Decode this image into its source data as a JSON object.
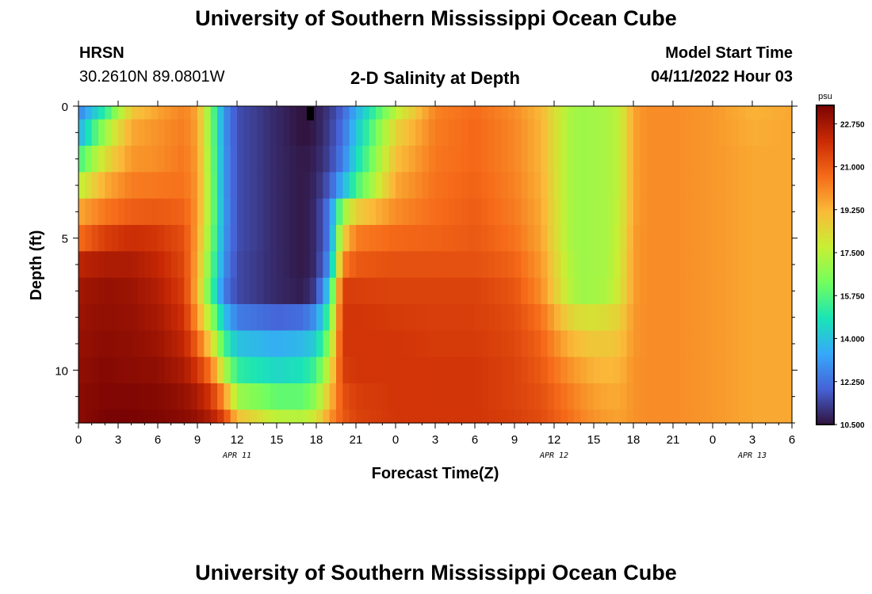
{
  "page": {
    "title_top": "University of Southern Mississippi Ocean Cube",
    "title_bottom": "University of Southern Mississippi Ocean Cube",
    "station": "HRSN",
    "coordinates": "30.2610N  89.0801W",
    "plot_title": "2-D Salinity at Depth",
    "model_start_label": "Model Start Time",
    "model_start_value": "04/11/2022 Hour 03"
  },
  "chart_data": {
    "type": "heatmap",
    "title": "2-D Salinity at Depth",
    "xlabel": "Forecast Time(Z)",
    "ylabel": "Depth (ft)",
    "units": "psu",
    "x_range_hours": [
      0,
      54
    ],
    "y_range_ft": [
      0,
      12
    ],
    "x_tick_labels": [
      "0",
      "3",
      "6",
      "9",
      "12",
      "15",
      "18",
      "21",
      "0",
      "3",
      "6",
      "9",
      "12",
      "15",
      "18",
      "21",
      "0",
      "3",
      "6"
    ],
    "y_tick_labels": [
      "0",
      "5",
      "10"
    ],
    "y_tick_values": [
      0,
      5,
      10
    ],
    "date_labels": [
      {
        "label": "APR 11",
        "hour": 12
      },
      {
        "label": "APR 12",
        "hour": 36
      },
      {
        "label": "APR 13",
        "hour": 51
      }
    ],
    "colorbar": {
      "min": 10.5,
      "max": 23.5,
      "tick_values": [
        22.75,
        21.0,
        19.25,
        17.5,
        15.75,
        14.0,
        12.25,
        10.5
      ],
      "tick_labels": [
        "22.750",
        "21.000",
        "19.250",
        "17.500",
        "15.750",
        "14.000",
        "12.250",
        "10.500"
      ],
      "colors": [
        "#30123b",
        "#4662d7",
        "#36a9f9",
        "#1ae4b6",
        "#72fe5e",
        "#c8ef34",
        "#faba39",
        "#f66b19",
        "#ca2a04",
        "#7a0403"
      ]
    },
    "grid_depths_ft": [
      0,
      1,
      2,
      3,
      4,
      5,
      6,
      7,
      8,
      9,
      10,
      11,
      12
    ],
    "profile_hours": [
      0,
      2,
      4,
      6,
      8,
      9,
      10,
      11,
      12,
      15,
      17,
      18,
      19,
      20,
      21,
      24,
      27,
      30,
      33,
      35,
      37,
      38,
      39,
      40,
      41,
      42,
      43,
      45,
      48,
      51,
      54
    ],
    "salinity_psu": [
      [
        12.6,
        15.2,
        18.8,
        19.6,
        20.2,
        19.5,
        16.5,
        13.0,
        11.6,
        10.9,
        10.5,
        10.7,
        11.2,
        12.0,
        13.5,
        17.5,
        20.2,
        20.6,
        20.0,
        19.2,
        17.3,
        17.0,
        17.1,
        17.2,
        17.6,
        19.6,
        20.0,
        20.0,
        19.8,
        19.3,
        19.5
      ],
      [
        13.5,
        17.0,
        19.5,
        19.9,
        20.3,
        19.6,
        16.6,
        13.0,
        11.6,
        10.9,
        10.5,
        10.7,
        11.3,
        12.2,
        14.0,
        18.5,
        20.3,
        20.7,
        20.1,
        19.3,
        17.3,
        17.0,
        17.1,
        17.2,
        17.6,
        19.6,
        20.0,
        20.0,
        19.8,
        19.4,
        19.5
      ],
      [
        15.5,
        18.2,
        19.8,
        20.0,
        20.4,
        19.7,
        16.7,
        13.1,
        11.6,
        10.9,
        10.6,
        10.8,
        11.4,
        12.5,
        14.5,
        19.0,
        20.4,
        20.7,
        20.1,
        19.3,
        17.3,
        17.0,
        17.1,
        17.2,
        17.6,
        19.6,
        20.0,
        20.0,
        19.8,
        19.5,
        19.5
      ],
      [
        17.5,
        19.4,
        20.3,
        20.4,
        20.5,
        19.8,
        16.8,
        13.1,
        11.6,
        10.9,
        10.6,
        10.9,
        11.8,
        13.6,
        15.5,
        19.5,
        20.5,
        20.8,
        20.2,
        19.4,
        17.3,
        17.0,
        17.1,
        17.2,
        17.6,
        19.6,
        20.0,
        20.0,
        19.8,
        19.5,
        19.5
      ],
      [
        19.5,
        20.4,
        20.9,
        21.0,
        20.8,
        19.8,
        16.8,
        13.2,
        11.6,
        10.9,
        10.6,
        11.0,
        12.5,
        16.8,
        18.6,
        20.0,
        20.6,
        20.9,
        20.3,
        19.5,
        17.3,
        17.0,
        17.1,
        17.2,
        17.7,
        19.6,
        20.0,
        20.0,
        19.8,
        19.5,
        19.5
      ],
      [
        20.6,
        21.6,
        22.0,
        21.8,
        21.2,
        19.6,
        16.6,
        13.1,
        11.6,
        10.9,
        10.6,
        11.0,
        12.5,
        18.5,
        20.3,
        20.7,
        20.8,
        21.0,
        20.5,
        19.6,
        17.3,
        17.0,
        17.1,
        17.2,
        17.8,
        19.7,
        20.0,
        20.0,
        19.8,
        19.5,
        19.5
      ],
      [
        22.3,
        22.6,
        22.6,
        22.2,
        21.4,
        19.4,
        16.2,
        12.9,
        11.5,
        10.9,
        10.6,
        11.0,
        13.0,
        20.2,
        21.0,
        21.2,
        21.2,
        21.2,
        20.8,
        19.8,
        17.5,
        17.0,
        17.1,
        17.2,
        17.9,
        19.7,
        20.0,
        20.0,
        19.8,
        19.5,
        19.5
      ],
      [
        22.8,
        23.0,
        22.9,
        22.5,
        21.6,
        19.2,
        15.8,
        12.5,
        11.5,
        10.9,
        10.7,
        11.3,
        14.5,
        21.6,
        21.6,
        21.5,
        21.5,
        21.5,
        21.1,
        20.0,
        17.6,
        17.0,
        17.1,
        17.3,
        18.0,
        19.7,
        20.0,
        20.0,
        19.8,
        19.5,
        19.5
      ],
      [
        22.9,
        23.1,
        23.0,
        22.7,
        21.9,
        19.8,
        17.0,
        14.0,
        12.5,
        12.0,
        12.2,
        13.0,
        15.8,
        21.8,
        21.8,
        21.7,
        21.6,
        21.6,
        21.3,
        20.5,
        18.6,
        18.2,
        18.1,
        18.3,
        18.6,
        19.8,
        20.0,
        20.0,
        19.8,
        19.5,
        19.5
      ],
      [
        23.0,
        23.2,
        23.1,
        22.9,
        22.2,
        20.8,
        18.6,
        15.6,
        14.0,
        13.5,
        13.8,
        14.3,
        16.8,
        21.8,
        21.8,
        21.8,
        21.7,
        21.7,
        21.4,
        20.8,
        19.4,
        19.0,
        18.8,
        18.8,
        19.0,
        19.8,
        20.0,
        20.0,
        19.8,
        19.5,
        19.5
      ],
      [
        23.1,
        23.3,
        23.2,
        23.1,
        22.6,
        21.8,
        20.4,
        17.5,
        15.2,
        14.5,
        14.8,
        15.5,
        18.0,
        21.6,
        21.8,
        21.8,
        21.8,
        21.8,
        21.5,
        21.0,
        20.0,
        19.6,
        19.3,
        19.2,
        19.3,
        19.9,
        20.0,
        20.0,
        19.8,
        19.5,
        19.5
      ],
      [
        23.2,
        23.4,
        23.4,
        23.3,
        23.0,
        22.6,
        21.8,
        20.0,
        17.0,
        16.0,
        16.0,
        16.8,
        19.0,
        21.2,
        21.6,
        21.8,
        21.8,
        21.8,
        21.5,
        21.2,
        20.4,
        20.0,
        19.7,
        19.5,
        19.5,
        19.9,
        20.0,
        20.0,
        19.8,
        19.5,
        19.5
      ],
      [
        23.2,
        23.5,
        23.5,
        23.4,
        23.2,
        23.0,
        22.5,
        21.5,
        19.0,
        17.5,
        17.4,
        18.0,
        19.8,
        21.0,
        21.5,
        21.8,
        21.8,
        21.8,
        21.6,
        21.3,
        20.6,
        20.2,
        19.9,
        19.7,
        19.6,
        19.9,
        20.0,
        20.0,
        19.8,
        19.5,
        19.5
      ]
    ]
  }
}
